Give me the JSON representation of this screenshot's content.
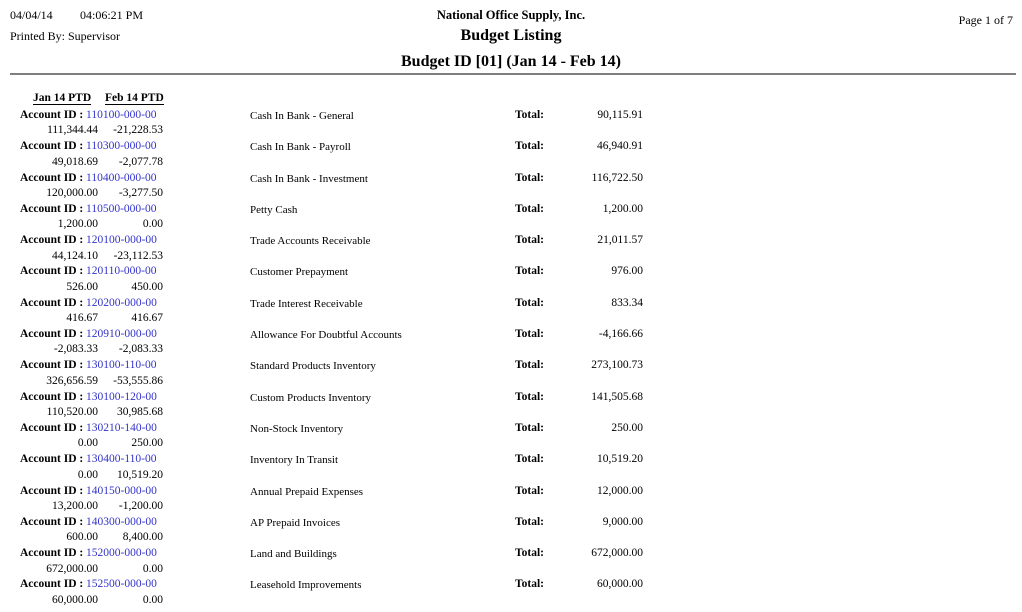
{
  "header": {
    "date": "04/04/14",
    "time": "04:06:21 PM",
    "printed_by": "Printed By: Supervisor",
    "company": "National Office Supply, Inc.",
    "report_title": "Budget Listing",
    "report_subtitle": "Budget ID [01] (Jan 14 - Feb 14)",
    "page": "Page 1 of  7"
  },
  "columns": {
    "jan": "Jan 14 PTD",
    "feb": "Feb 14 PTD"
  },
  "labels": {
    "account_id": "Account ID :",
    "total": "Total:"
  },
  "colors": {
    "account_link": "#3333cc",
    "rule": "#7f7f7f",
    "text": "#000000"
  },
  "rows": [
    {
      "account_id": "110100-000-00",
      "jan": "111,344.44",
      "feb": "-21,228.53",
      "description": "Cash In Bank - General",
      "total": "90,115.91"
    },
    {
      "account_id": "110300-000-00",
      "jan": "49,018.69",
      "feb": "-2,077.78",
      "description": "Cash In Bank - Payroll",
      "total": "46,940.91"
    },
    {
      "account_id": "110400-000-00",
      "jan": "120,000.00",
      "feb": "-3,277.50",
      "description": "Cash In Bank - Investment",
      "total": "116,722.50"
    },
    {
      "account_id": "110500-000-00",
      "jan": "1,200.00",
      "feb": "0.00",
      "description": "Petty Cash",
      "total": "1,200.00"
    },
    {
      "account_id": "120100-000-00",
      "jan": "44,124.10",
      "feb": "-23,112.53",
      "description": "Trade Accounts Receivable",
      "total": "21,011.57"
    },
    {
      "account_id": "120110-000-00",
      "jan": "526.00",
      "feb": "450.00",
      "description": "Customer Prepayment",
      "total": "976.00"
    },
    {
      "account_id": "120200-000-00",
      "jan": "416.67",
      "feb": "416.67",
      "description": "Trade Interest Receivable",
      "total": "833.34"
    },
    {
      "account_id": "120910-000-00",
      "jan": "-2,083.33",
      "feb": "-2,083.33",
      "description": "Allowance For Doubtful Accounts",
      "total": "-4,166.66"
    },
    {
      "account_id": "130100-110-00",
      "jan": "326,656.59",
      "feb": "-53,555.86",
      "description": "Standard Products Inventory",
      "total": "273,100.73"
    },
    {
      "account_id": "130100-120-00",
      "jan": "110,520.00",
      "feb": "30,985.68",
      "description": "Custom Products Inventory",
      "total": "141,505.68"
    },
    {
      "account_id": "130210-140-00",
      "jan": "0.00",
      "feb": "250.00",
      "description": "Non-Stock Inventory",
      "total": "250.00"
    },
    {
      "account_id": "130400-110-00",
      "jan": "0.00",
      "feb": "10,519.20",
      "description": "Inventory In Transit",
      "total": "10,519.20"
    },
    {
      "account_id": "140150-000-00",
      "jan": "13,200.00",
      "feb": "-1,200.00",
      "description": "Annual Prepaid Expenses",
      "total": "12,000.00"
    },
    {
      "account_id": "140300-000-00",
      "jan": "600.00",
      "feb": "8,400.00",
      "description": "AP Prepaid Invoices",
      "total": "9,000.00"
    },
    {
      "account_id": "152000-000-00",
      "jan": "672,000.00",
      "feb": "0.00",
      "description": "Land and Buildings",
      "total": "672,000.00"
    },
    {
      "account_id": "152500-000-00",
      "jan": "60,000.00",
      "feb": "0.00",
      "description": "Leasehold Improvements",
      "total": "60,000.00"
    }
  ]
}
